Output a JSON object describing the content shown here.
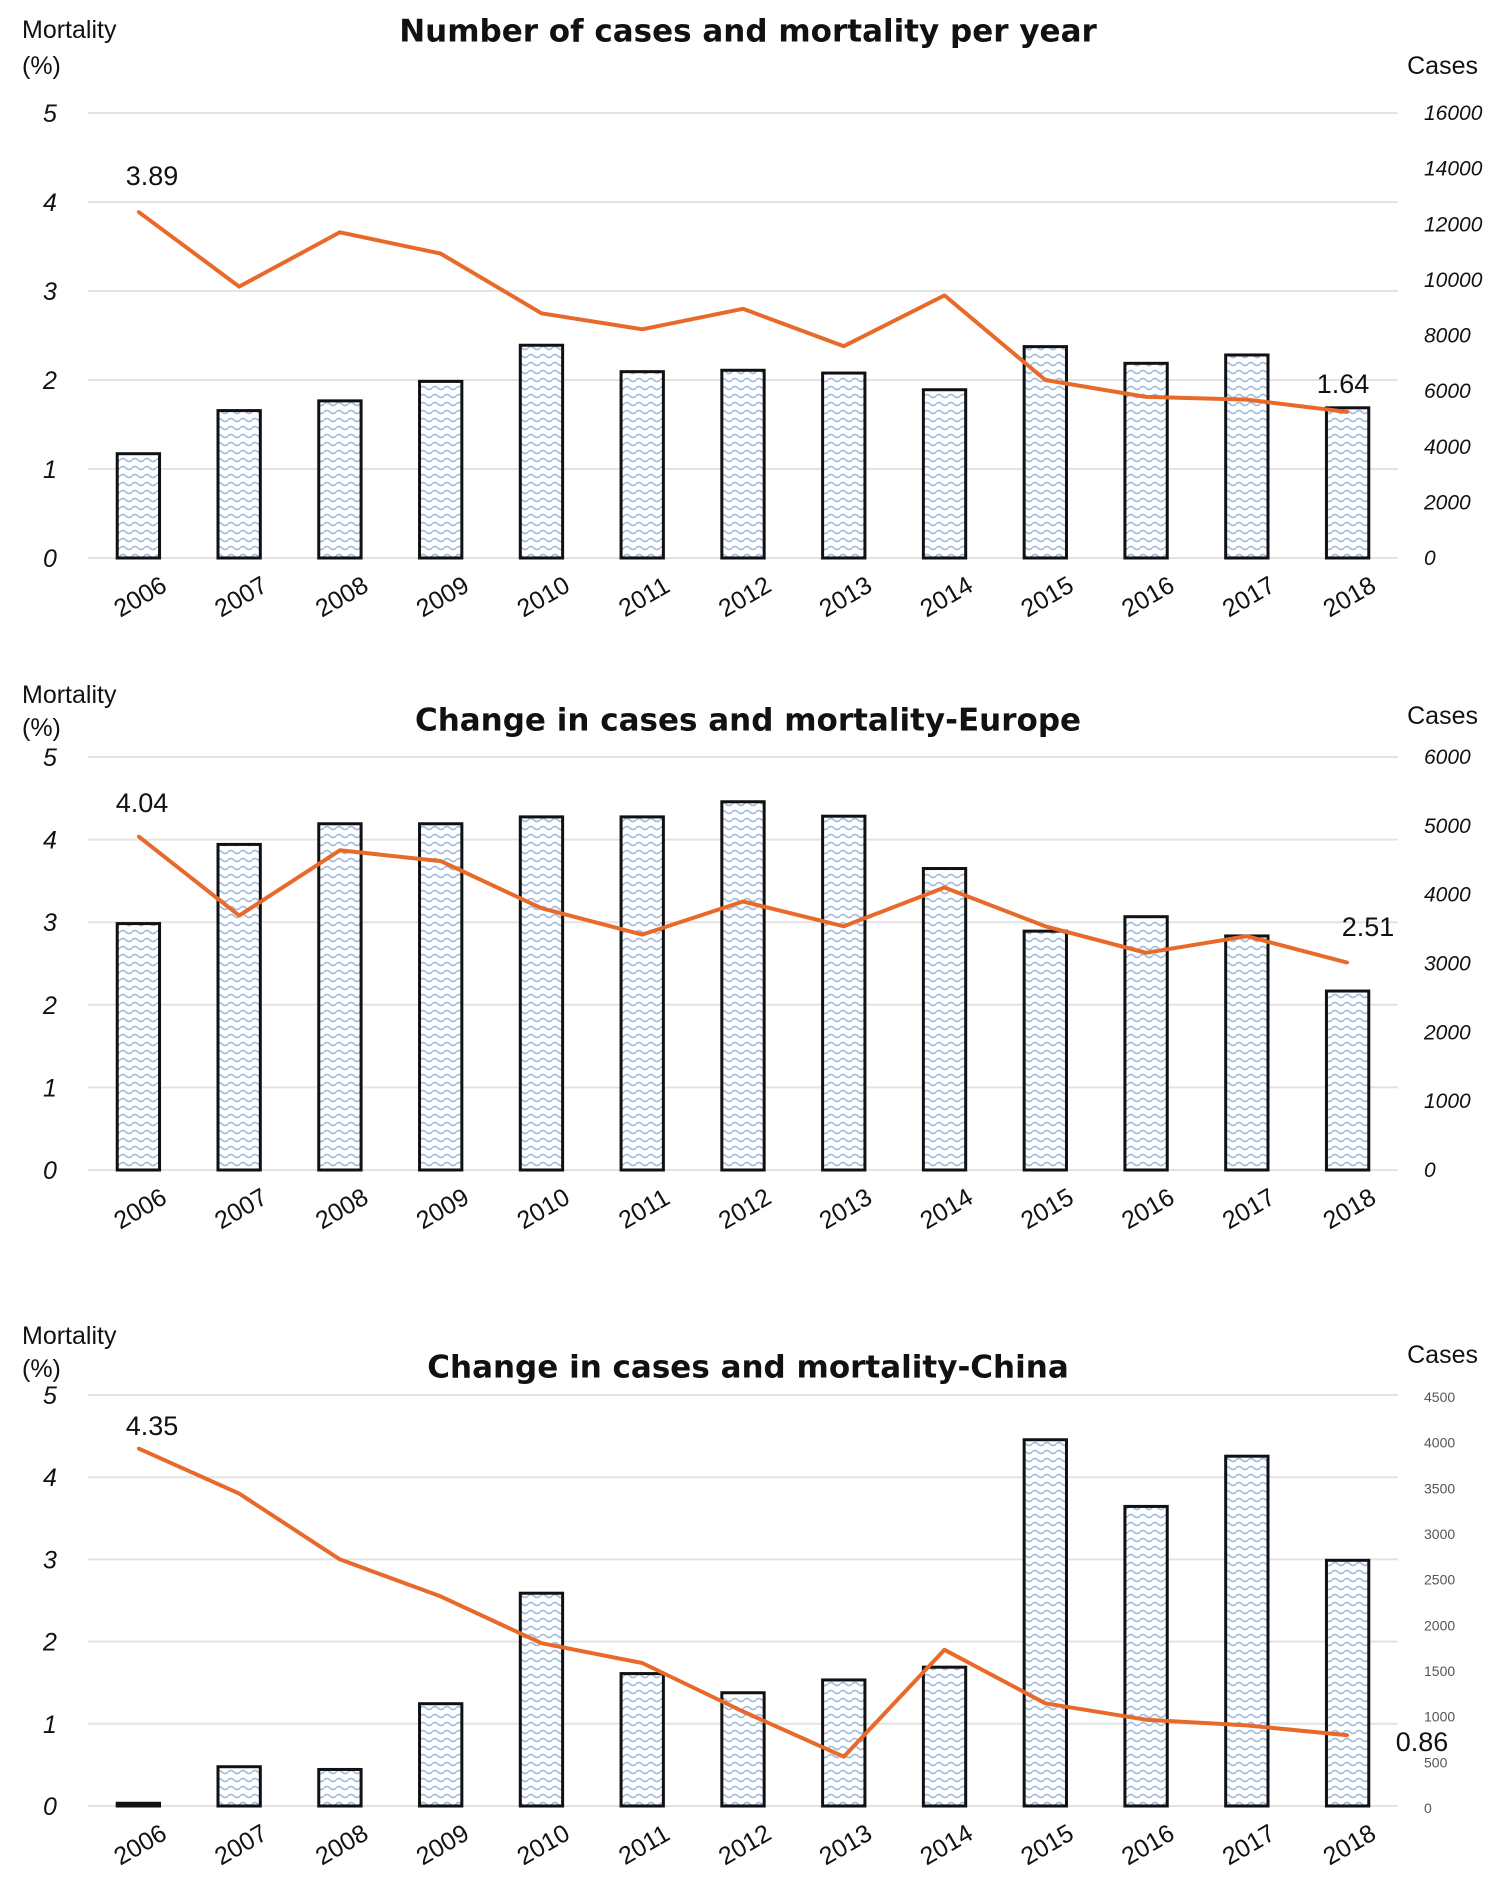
{
  "chart_data": [
    {
      "type": "bar",
      "title": "Number of cases and mortality per year",
      "ylabel": "Mortality\n(%)",
      "y2label": "Cases",
      "categories": [
        "2006",
        "2007",
        "2008",
        "2009",
        "2010",
        "2011",
        "2012",
        "2013",
        "2014",
        "2015",
        "2016",
        "2017",
        "2018"
      ],
      "ylim": [
        0,
        5
      ],
      "y2lim": [
        0,
        16000
      ],
      "yticks": [
        "0",
        "1",
        "2",
        "3",
        "4",
        "5"
      ],
      "y2ticks": [
        "0",
        "2000",
        "4000",
        "6000",
        "8000",
        "10000",
        "12000",
        "14000",
        "16000"
      ],
      "series": [
        {
          "kind": "bar",
          "axis": "right",
          "values": [
            3750,
            5300,
            5650,
            6350,
            7650,
            6700,
            6750,
            6650,
            6050,
            7600,
            7000,
            7300,
            5400
          ]
        },
        {
          "kind": "line",
          "axis": "left",
          "values": [
            3.89,
            3.05,
            3.66,
            3.42,
            2.75,
            2.57,
            2.8,
            2.38,
            2.95,
            2.0,
            1.81,
            1.78,
            1.64
          ]
        }
      ],
      "data_labels": [
        {
          "index": 0,
          "text": "3.89"
        },
        {
          "index": 12,
          "text": "1.64"
        }
      ],
      "grid": true,
      "line_color": "#e86a2a"
    },
    {
      "type": "bar",
      "title": "Change in cases and mortality-Europe",
      "ylabel": "Mortality\n(%)",
      "y2label": "Cases",
      "categories": [
        "2006",
        "2007",
        "2008",
        "2009",
        "2010",
        "2011",
        "2012",
        "2013",
        "2014",
        "2015",
        "2016",
        "2017",
        "2018"
      ],
      "ylim": [
        0,
        5
      ],
      "y2lim": [
        0,
        6000
      ],
      "yticks": [
        "0",
        "1",
        "2",
        "3",
        "4",
        "5"
      ],
      "y2ticks": [
        "0",
        "1000",
        "2000",
        "3000",
        "4000",
        "5000",
        "6000"
      ],
      "series": [
        {
          "kind": "bar",
          "axis": "right",
          "values": [
            3580,
            4730,
            5030,
            5030,
            5130,
            5130,
            5350,
            5140,
            4380,
            3470,
            3680,
            3400,
            2600
          ]
        },
        {
          "kind": "line",
          "axis": "left",
          "values": [
            4.04,
            3.08,
            3.87,
            3.74,
            3.17,
            2.85,
            3.25,
            2.95,
            3.42,
            2.95,
            2.63,
            2.83,
            2.51
          ]
        }
      ],
      "data_labels": [
        {
          "index": 0,
          "text": "4.04"
        },
        {
          "index": 12,
          "text": "2.51"
        }
      ],
      "grid": true,
      "line_color": "#e86a2a"
    },
    {
      "type": "bar",
      "title": "Change in cases and mortality-China",
      "ylabel": "Mortality\n(%)",
      "y2label": "Cases",
      "categories": [
        "2006",
        "2007",
        "2008",
        "2009",
        "2010",
        "2011",
        "2012",
        "2013",
        "2014",
        "2015",
        "2016",
        "2017",
        "2018"
      ],
      "ylim": [
        0,
        5
      ],
      "y2lim": [
        0,
        4500
      ],
      "yticks": [
        "0",
        "1",
        "2",
        "3",
        "4",
        "5"
      ],
      "y2ticks": [
        "0",
        "500",
        "1000",
        "1500",
        "2000",
        "2500",
        "3000",
        "3500",
        "4000",
        "4500"
      ],
      "series": [
        {
          "kind": "bar",
          "axis": "right",
          "values": [
            30,
            430,
            400,
            1120,
            2330,
            1450,
            1240,
            1380,
            1520,
            4010,
            3280,
            3830,
            2690
          ]
        },
        {
          "kind": "line",
          "axis": "left",
          "values": [
            4.35,
            3.8,
            3.0,
            2.55,
            1.98,
            1.74,
            1.15,
            0.6,
            1.9,
            1.25,
            1.05,
            0.98,
            0.86
          ]
        }
      ],
      "data_labels": [
        {
          "index": 0,
          "text": "4.35"
        },
        {
          "index": 12,
          "text": "0.86"
        }
      ],
      "grid": true,
      "line_color": "#e86a2a"
    }
  ]
}
